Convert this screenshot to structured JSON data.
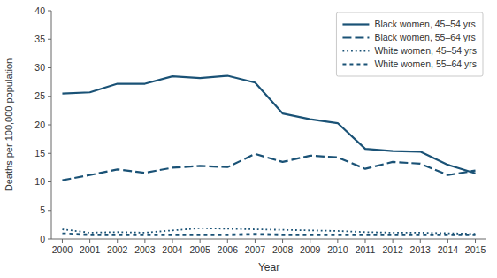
{
  "chart_data": {
    "type": "line",
    "x": [
      2000,
      2001,
      2002,
      2003,
      2004,
      2005,
      2006,
      2007,
      2008,
      2009,
      2010,
      2011,
      2012,
      2013,
      2014,
      2015
    ],
    "xlim": [
      1999.6,
      2015.4
    ],
    "xticks": [
      2000,
      2001,
      2002,
      2003,
      2004,
      2005,
      2006,
      2007,
      2008,
      2009,
      2010,
      2011,
      2012,
      2013,
      2014,
      2015
    ],
    "ylim": [
      0,
      40
    ],
    "yticks": [
      0,
      5,
      10,
      15,
      20,
      25,
      30,
      35,
      40
    ],
    "xlabel": "Year",
    "ylabel": "Deaths per 100,000 population",
    "grid": false,
    "legend": "upper right",
    "series": [
      {
        "name": "Black women, 45–54 yrs",
        "color": "#1a5276",
        "line_style": "solid",
        "values": [
          25.5,
          25.7,
          27.2,
          27.2,
          28.5,
          28.2,
          28.6,
          27.4,
          22.0,
          21.0,
          20.3,
          15.8,
          15.4,
          15.3,
          13.0,
          11.5
        ]
      },
      {
        "name": "Black women, 55–64 yrs",
        "color": "#1a5276",
        "line_style": "long-dashed",
        "values": [
          10.3,
          11.2,
          12.2,
          11.6,
          12.5,
          12.8,
          12.6,
          14.9,
          13.5,
          14.6,
          14.3,
          12.3,
          13.5,
          13.2,
          11.2,
          12.0
        ]
      },
      {
        "name": "White women, 45–54 yrs",
        "color": "#1a5276",
        "line_style": "dotted",
        "values": [
          1.7,
          1.1,
          1.2,
          1.1,
          1.5,
          1.9,
          1.8,
          1.7,
          1.6,
          1.5,
          1.4,
          1.2,
          1.1,
          1.1,
          1.0,
          0.9
        ]
      },
      {
        "name": "White women, 55–64 yrs",
        "color": "#1a5276",
        "line_style": "short-dashed",
        "values": [
          1.0,
          0.8,
          0.8,
          0.8,
          0.8,
          0.8,
          0.8,
          0.9,
          0.8,
          0.8,
          0.8,
          0.8,
          0.8,
          0.8,
          0.8,
          0.8
        ]
      }
    ]
  }
}
